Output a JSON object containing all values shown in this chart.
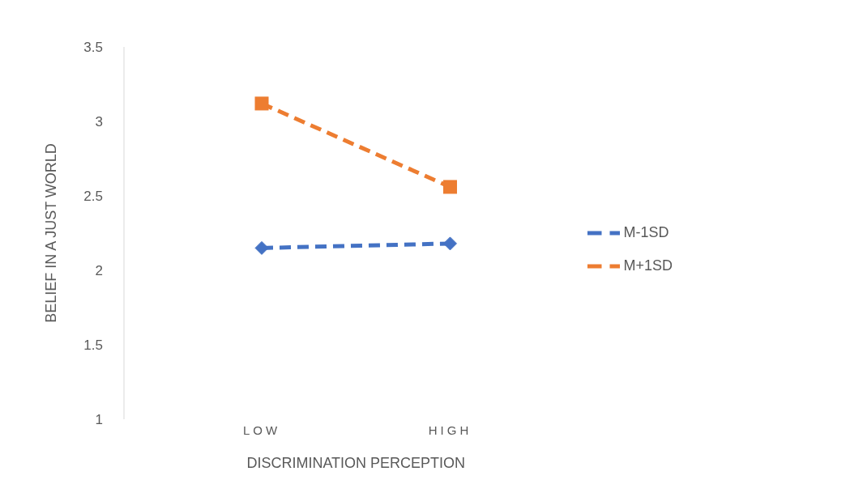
{
  "chart_data": {
    "type": "line",
    "xlabel": "DISCRIMINATION PERCEPTION",
    "ylabel": "BELIEF IN A JUST WORLD",
    "categories": [
      "LOW",
      "HIGH"
    ],
    "series": [
      {
        "name": "M-1SD",
        "color": "#4472c4",
        "values": [
          2.15,
          2.18
        ],
        "marker": "diamond",
        "line_style": "dashed"
      },
      {
        "name": "M+1SD",
        "color": "#ed7d31",
        "values": [
          3.12,
          2.56
        ],
        "marker": "square",
        "line_style": "dashed"
      }
    ],
    "ylim": [
      1,
      3.5
    ],
    "yticks": [
      1,
      1.5,
      2,
      2.5,
      3,
      3.5
    ],
    "grid": false,
    "legend": "right"
  }
}
